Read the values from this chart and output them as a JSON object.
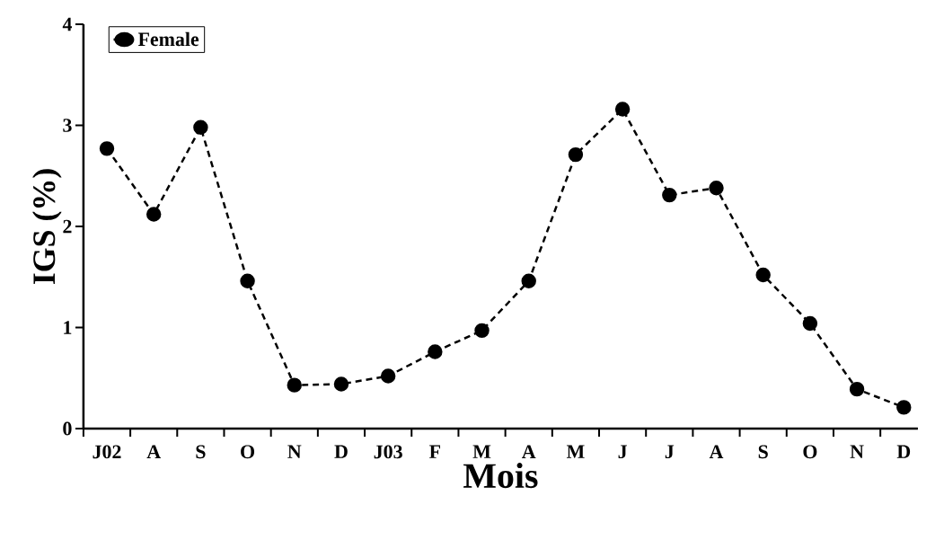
{
  "chart_data": {
    "type": "line",
    "xlabel": "Mois",
    "ylabel": "IGS (%)",
    "categories": [
      "J02",
      "A",
      "S",
      "O",
      "N",
      "D",
      "J03",
      "F",
      "M",
      "A",
      "M",
      "J",
      "J",
      "A",
      "S",
      "O",
      "N",
      "D"
    ],
    "series": [
      {
        "name": "Female",
        "color": "#000000",
        "values": [
          2.77,
          2.12,
          2.98,
          1.46,
          0.43,
          0.44,
          0.52,
          0.76,
          0.97,
          1.46,
          2.71,
          3.16,
          2.31,
          2.38,
          1.52,
          1.04,
          0.39,
          0.21
        ]
      }
    ],
    "ylim": [
      0,
      4
    ],
    "yticks": [
      0,
      1,
      2,
      3,
      4
    ],
    "grid": false,
    "legend": "top left",
    "marker": "circle",
    "line_style": "dashed"
  }
}
